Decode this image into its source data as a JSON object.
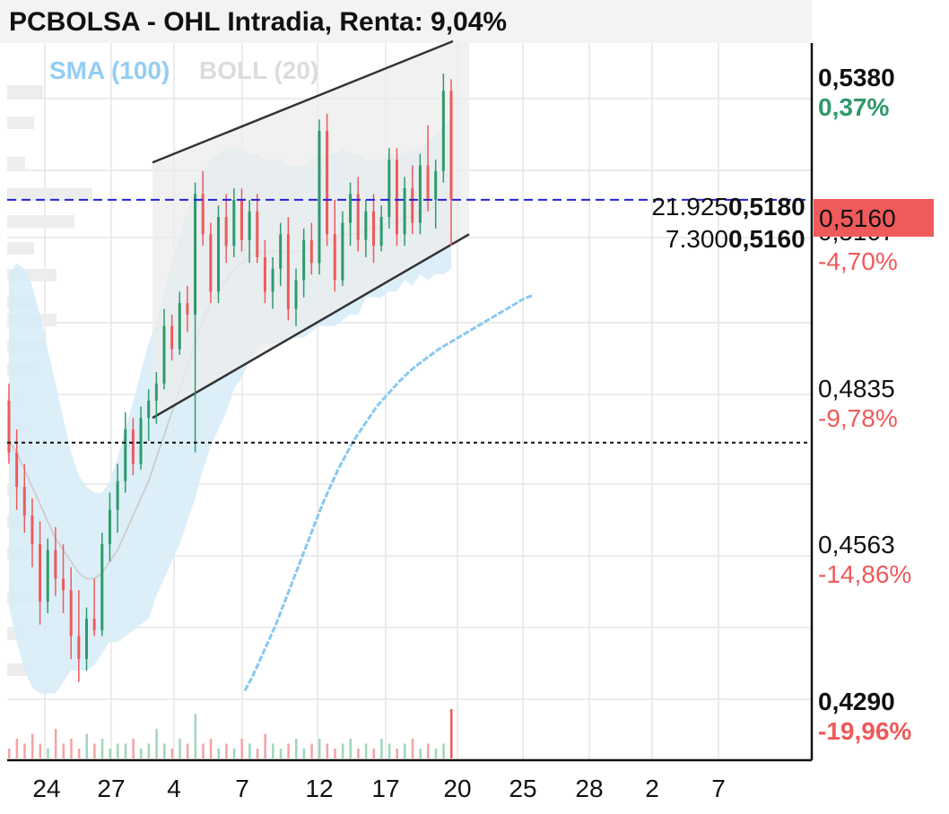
{
  "title": "PCBOLSA - OHL Intradia, Renta: 9,04%",
  "legend": {
    "sma": "SMA (100)",
    "boll": "BOLL (20)"
  },
  "colors": {
    "up": "#2e9a6a",
    "down": "#ee5a5a",
    "sma": "#88c8f0",
    "boll_fill": "#d6ecf8",
    "channel_fill": "#ececec",
    "price_line": "#2222dd"
  },
  "price_axis": [
    {
      "price": "0,5380",
      "pct": "0,37%",
      "pct_color": "#2e9a6a",
      "bold": true
    },
    {
      "price": "0,5107",
      "pct": "-4,70%",
      "pct_color": "#ee5a5a",
      "bold": false
    },
    {
      "price": "0,4835",
      "pct": "-9,78%",
      "pct_color": "#ee5a5a",
      "bold": false
    },
    {
      "price": "0,4563",
      "pct": "-14,86%",
      "pct_color": "#ee5a5a",
      "bold": false
    },
    {
      "price": "0,4290",
      "pct": "-19,96%",
      "pct_color": "#ee5a5a",
      "bold": true
    }
  ],
  "current_price": {
    "label": "0,5160",
    "bg": "#f05a5a"
  },
  "order_book": [
    {
      "qty": "21.925",
      "price": "0,5180",
      "color": "#2e9a6a"
    },
    {
      "qty": "7.300",
      "price": "0,5160",
      "color": "#2a7fd4"
    }
  ],
  "x_labels": [
    "24",
    "27",
    "4",
    "7",
    "12",
    "17",
    "20",
    "25",
    "28",
    "2",
    "7"
  ],
  "chart_data": {
    "type": "candlestick",
    "title": "PCBOLSA - OHL Intradia, Renta: 9,04%",
    "ylim": [
      0.429,
      0.538
    ],
    "y_ticks": [
      0.538,
      0.5107,
      0.4835,
      0.4563,
      0.429
    ],
    "reference_price": 0.4737,
    "last_price": 0.516,
    "candles": [
      [
        0.481,
        0.484,
        0.47,
        0.472
      ],
      [
        0.472,
        0.476,
        0.462,
        0.466
      ],
      [
        0.466,
        0.47,
        0.458,
        0.461
      ],
      [
        0.461,
        0.464,
        0.452,
        0.456
      ],
      [
        0.456,
        0.46,
        0.442,
        0.446
      ],
      [
        0.446,
        0.457,
        0.444,
        0.455
      ],
      [
        0.455,
        0.459,
        0.447,
        0.45
      ],
      [
        0.45,
        0.456,
        0.444,
        0.448
      ],
      [
        0.448,
        0.452,
        0.436,
        0.44
      ],
      [
        0.44,
        0.448,
        0.432,
        0.436
      ],
      [
        0.436,
        0.445,
        0.434,
        0.443
      ],
      [
        0.443,
        0.45,
        0.44,
        0.441
      ],
      [
        0.441,
        0.458,
        0.44,
        0.456
      ],
      [
        0.456,
        0.465,
        0.453,
        0.462
      ],
      [
        0.462,
        0.47,
        0.458,
        0.467
      ],
      [
        0.467,
        0.479,
        0.465,
        0.476
      ],
      [
        0.476,
        0.478,
        0.468,
        0.47
      ],
      [
        0.47,
        0.48,
        0.469,
        0.478
      ],
      [
        0.478,
        0.483,
        0.474,
        0.481
      ],
      [
        0.481,
        0.486,
        0.477,
        0.484
      ],
      [
        0.484,
        0.497,
        0.483,
        0.494
      ],
      [
        0.494,
        0.496,
        0.488,
        0.49
      ],
      [
        0.49,
        0.5,
        0.489,
        0.498
      ],
      [
        0.498,
        0.501,
        0.493,
        0.496
      ],
      [
        0.496,
        0.519,
        0.472,
        0.517
      ],
      [
        0.517,
        0.521,
        0.508,
        0.51
      ],
      [
        0.51,
        0.512,
        0.498,
        0.5
      ],
      [
        0.5,
        0.515,
        0.498,
        0.513
      ],
      [
        0.513,
        0.517,
        0.505,
        0.508
      ],
      [
        0.508,
        0.518,
        0.506,
        0.516
      ],
      [
        0.516,
        0.518,
        0.507,
        0.509
      ],
      [
        0.509,
        0.516,
        0.505,
        0.514
      ],
      [
        0.514,
        0.517,
        0.505,
        0.506
      ],
      [
        0.506,
        0.509,
        0.498,
        0.5
      ],
      [
        0.5,
        0.506,
        0.497,
        0.504
      ],
      [
        0.504,
        0.512,
        0.501,
        0.51
      ],
      [
        0.51,
        0.513,
        0.495,
        0.497
      ],
      [
        0.497,
        0.504,
        0.494,
        0.502
      ],
      [
        0.502,
        0.511,
        0.499,
        0.509
      ],
      [
        0.509,
        0.512,
        0.503,
        0.505
      ],
      [
        0.505,
        0.53,
        0.503,
        0.528
      ],
      [
        0.528,
        0.531,
        0.508,
        0.51
      ],
      [
        0.51,
        0.516,
        0.5,
        0.502
      ],
      [
        0.502,
        0.514,
        0.501,
        0.512
      ],
      [
        0.512,
        0.519,
        0.508,
        0.517
      ],
      [
        0.517,
        0.52,
        0.507,
        0.509
      ],
      [
        0.509,
        0.516,
        0.506,
        0.514
      ],
      [
        0.514,
        0.517,
        0.505,
        0.508
      ],
      [
        0.508,
        0.515,
        0.507,
        0.513
      ],
      [
        0.513,
        0.525,
        0.511,
        0.523
      ],
      [
        0.523,
        0.525,
        0.508,
        0.51
      ],
      [
        0.51,
        0.52,
        0.508,
        0.518
      ],
      [
        0.518,
        0.522,
        0.51,
        0.512
      ],
      [
        0.512,
        0.524,
        0.51,
        0.522
      ],
      [
        0.522,
        0.529,
        0.514,
        0.516
      ],
      [
        0.516,
        0.523,
        0.511,
        0.521
      ],
      [
        0.521,
        0.538,
        0.519,
        0.535
      ],
      [
        0.535,
        0.537,
        0.508,
        0.516
      ]
    ],
    "volume": [
      2,
      4,
      3,
      5,
      3,
      2,
      6,
      3,
      4,
      2,
      5,
      3,
      4,
      2,
      3,
      3,
      4,
      2,
      3,
      6,
      3,
      2,
      4,
      3,
      9,
      3,
      4,
      2,
      3,
      2,
      4,
      3,
      2,
      5,
      3,
      2,
      3,
      4,
      2,
      3,
      4,
      3,
      2,
      3,
      4,
      2,
      3,
      2,
      4,
      3,
      2,
      3,
      4,
      2,
      3,
      2,
      3,
      10
    ],
    "series": [
      {
        "name": "SMA (100)",
        "values": [
          null,
          null,
          null,
          null,
          null,
          null,
          null,
          null,
          null,
          null,
          null,
          null,
          null,
          null,
          null,
          null,
          null,
          null,
          null,
          null,
          0.4305,
          0.433,
          0.436,
          0.439,
          0.442,
          0.4455,
          0.449,
          0.4525,
          0.456,
          0.4595,
          0.463,
          0.466,
          0.469,
          0.4715,
          0.474,
          0.476,
          0.478,
          0.48,
          0.4815,
          0.483,
          0.4845,
          0.4858,
          0.487,
          0.488,
          0.489,
          0.49,
          0.4908,
          0.4916,
          0.4924,
          0.4932,
          0.494,
          0.4948,
          0.4956,
          0.4964,
          0.4972,
          0.498,
          0.4988,
          0.4993
        ]
      },
      {
        "name": "BOLL (20)",
        "upper": [
          0.503,
          0.505,
          0.504,
          0.501,
          0.496,
          0.49,
          0.484,
          0.478,
          0.472,
          0.468,
          0.466,
          0.465,
          0.465,
          0.467,
          0.471,
          0.476,
          0.481,
          0.486,
          0.491,
          0.495,
          0.5,
          0.505,
          0.51,
          0.514,
          0.518,
          0.521,
          0.523,
          0.524,
          0.525,
          0.525,
          0.525,
          0.524,
          0.524,
          0.523,
          0.523,
          0.523,
          0.522,
          0.522,
          0.522,
          0.523,
          0.524,
          0.524,
          0.524,
          0.525,
          0.524,
          0.524,
          0.523,
          0.523,
          0.523,
          0.524,
          0.524,
          0.524,
          0.525,
          0.525,
          0.526,
          0.527,
          0.529,
          0.53
        ],
        "middle": [
          0.474,
          0.472,
          0.469,
          0.466,
          0.463,
          0.46,
          0.457,
          0.455,
          0.453,
          0.451,
          0.45,
          0.45,
          0.451,
          0.453,
          0.455,
          0.458,
          0.461,
          0.464,
          0.467,
          0.471,
          0.475,
          0.479,
          0.483,
          0.487,
          0.491,
          0.495,
          0.498,
          0.5,
          0.502,
          0.504,
          0.505,
          0.506,
          0.507,
          0.507,
          0.507,
          0.507,
          0.507,
          0.507,
          0.507,
          0.508,
          0.509,
          0.509,
          0.509,
          0.51,
          0.51,
          0.51,
          0.511,
          0.511,
          0.511,
          0.512,
          0.512,
          0.513,
          0.513,
          0.514,
          0.514,
          0.515,
          0.516,
          0.517
        ],
        "lower": [
          0.445,
          0.439,
          0.434,
          0.431,
          0.43,
          0.43,
          0.43,
          0.432,
          0.434,
          0.434,
          0.434,
          0.435,
          0.437,
          0.439,
          0.439,
          0.44,
          0.441,
          0.442,
          0.443,
          0.447,
          0.45,
          0.453,
          0.456,
          0.46,
          0.464,
          0.469,
          0.473,
          0.476,
          0.479,
          0.483,
          0.485,
          0.488,
          0.49,
          0.491,
          0.491,
          0.491,
          0.492,
          0.492,
          0.492,
          0.493,
          0.494,
          0.494,
          0.494,
          0.495,
          0.496,
          0.496,
          0.499,
          0.499,
          0.499,
          0.5,
          0.5,
          0.502,
          0.501,
          0.503,
          0.502,
          0.503,
          0.503,
          0.504
        ]
      }
    ],
    "trend_channel": {
      "upper": [
        [
          0.5225,
          0.5385
        ],
        [
          0.538,
          0.535
        ]
      ],
      "lower": [
        [
          0.478,
          0.488
        ],
        [
          0.488,
          0.51
        ]
      ]
    }
  }
}
